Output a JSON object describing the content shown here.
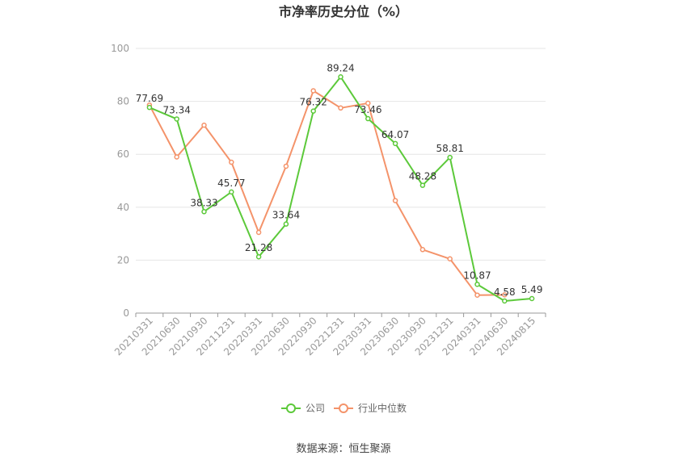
{
  "chart_data": {
    "type": "line",
    "title": "市净率历史分位（%）",
    "x": [
      "20210331",
      "20210630",
      "20210930",
      "20211231",
      "20220331",
      "20220630",
      "20220930",
      "20221231",
      "20230331",
      "20230630",
      "20230930",
      "20231231",
      "20240331",
      "20240630",
      "20240815"
    ],
    "ylim": [
      0,
      100
    ],
    "yticks": [
      0,
      20,
      40,
      60,
      80,
      100
    ],
    "grid": true,
    "legend_position": "bottom",
    "series": [
      {
        "name": "公司",
        "color": "#5cc93a",
        "values": [
          77.69,
          73.34,
          38.33,
          45.77,
          21.28,
          33.64,
          76.32,
          89.24,
          73.46,
          64.07,
          48.28,
          58.81,
          10.87,
          4.58,
          5.49
        ],
        "labels": [
          "77.69",
          "73.34",
          "38.33",
          "45.77",
          "21.28",
          "33.64",
          "76.32",
          "89.24",
          "73.46",
          "64.07",
          "48.28",
          "58.81",
          "10.87",
          "4.58",
          "5.49"
        ]
      },
      {
        "name": "行业中位数",
        "color": "#f4936a",
        "values": [
          78.6,
          59.0,
          71.0,
          57.0,
          30.5,
          55.5,
          84.0,
          77.5,
          79.3,
          42.5,
          24.0,
          20.5,
          6.8,
          6.9,
          null
        ]
      }
    ]
  },
  "source": "数据来源：恒生聚源"
}
